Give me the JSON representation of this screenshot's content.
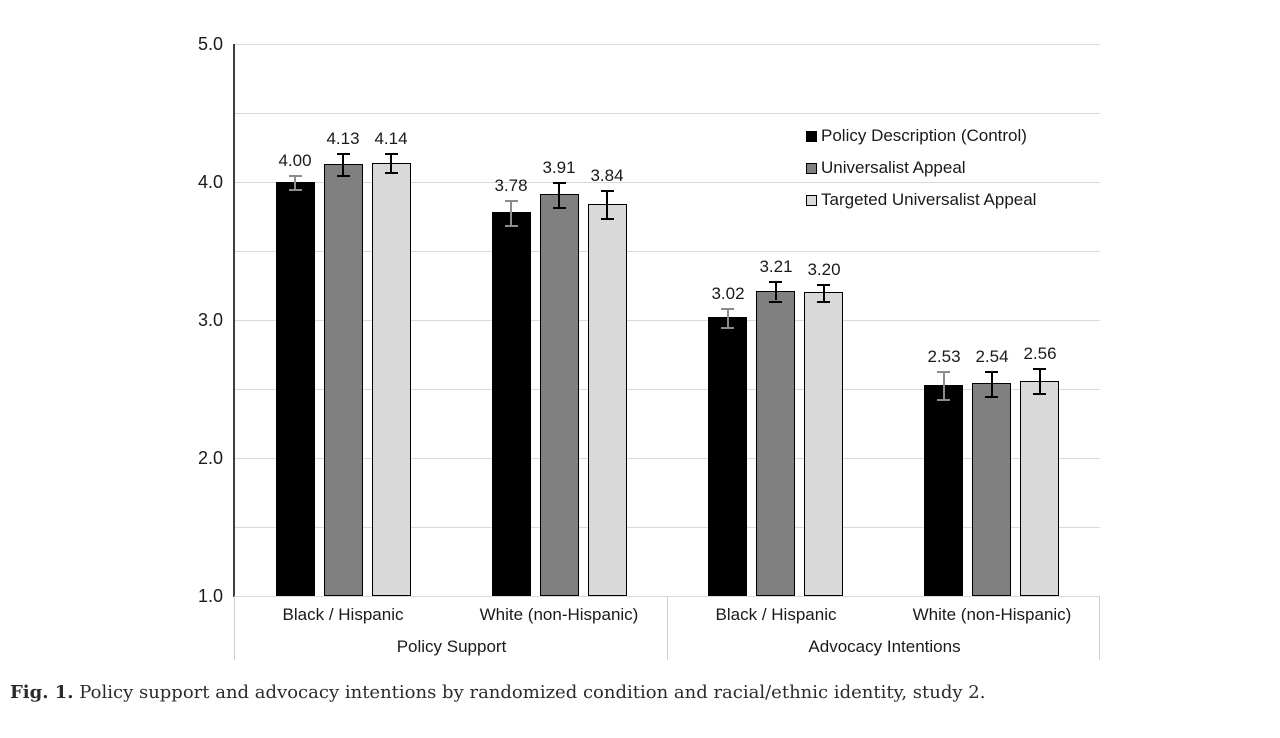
{
  "figure": {
    "caption_label": "Fig. 1.",
    "caption_text": " Policy support and advocacy intentions by randomized condition and racial/ethnic identity, study 2."
  },
  "colors": {
    "bar_black": "#000000",
    "bar_dark_gray": "#808080",
    "bar_light_gray": "#d9d9d9",
    "bar_border": "#000000",
    "gridline": "#d9d9d9",
    "axis_line": "#3d3d3d",
    "error_bar_control": "#8c8c8c",
    "error_bar_other": "#000000",
    "text": "#1a1a1a"
  },
  "chart_data": {
    "type": "bar",
    "title": "",
    "xlabel": "",
    "ylabel": "",
    "ylim": [
      1.0,
      5.0
    ],
    "gridline_interval": 0.5,
    "grid": true,
    "legend_position": "top-right",
    "yticks": [
      {
        "label": "5.0",
        "value": 5.0
      },
      {
        "label": "4.0",
        "value": 4.0
      },
      {
        "label": "3.0",
        "value": 3.0
      },
      {
        "label": "2.0",
        "value": 2.0
      },
      {
        "label": "1.0",
        "value": 1.0
      }
    ],
    "categories": [
      "Black / Hispanic",
      "White (non-Hispanic)",
      "Black / Hispanic",
      "White (non-Hispanic)"
    ],
    "group_labels": [
      {
        "label": "Policy Support",
        "category_span": [
          0,
          1
        ]
      },
      {
        "label": "Advocacy Intentions",
        "category_span": [
          2,
          3
        ]
      }
    ],
    "series": [
      {
        "name": "Policy Description (Control)",
        "color_key": "bar_black",
        "error_color_key": "error_bar_control",
        "values": [
          4.0,
          3.78,
          3.02,
          2.53
        ],
        "value_labels": [
          "4.00",
          "3.78",
          "3.02",
          "2.53"
        ],
        "errors": [
          0.05,
          0.09,
          0.07,
          0.1
        ]
      },
      {
        "name": "Universalist Appeal",
        "color_key": "bar_dark_gray",
        "error_color_key": "error_bar_other",
        "values": [
          4.13,
          3.91,
          3.21,
          2.54
        ],
        "value_labels": [
          "4.13",
          "3.91",
          "3.21",
          "2.54"
        ],
        "errors": [
          0.08,
          0.09,
          0.07,
          0.09
        ]
      },
      {
        "name": "Targeted Universalist Appeal",
        "color_key": "bar_light_gray",
        "error_color_key": "error_bar_other",
        "values": [
          4.14,
          3.84,
          3.2,
          2.56
        ],
        "value_labels": [
          "4.14",
          "3.84",
          "3.20",
          "2.56"
        ],
        "errors": [
          0.07,
          0.1,
          0.06,
          0.09
        ]
      }
    ]
  }
}
